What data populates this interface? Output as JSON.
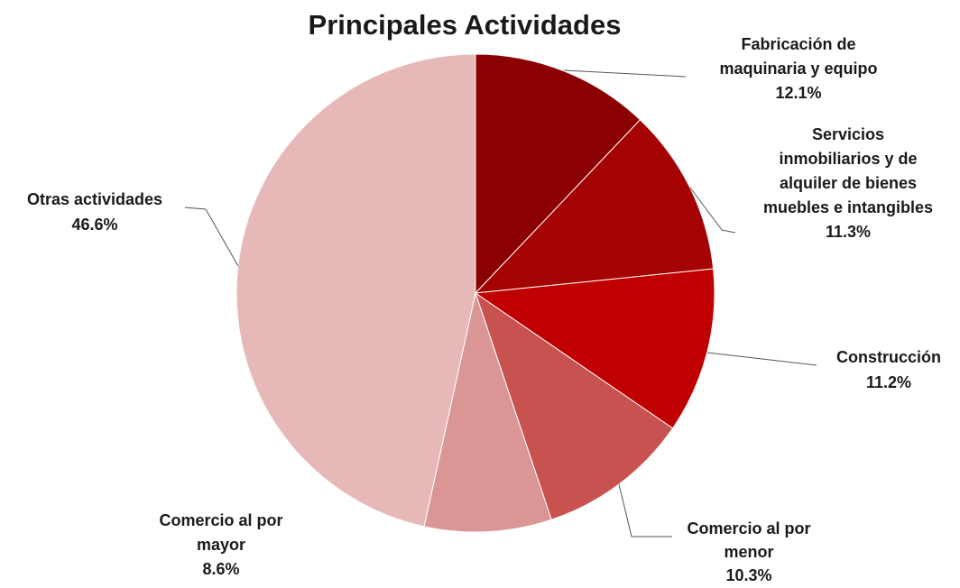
{
  "chart_data": {
    "type": "pie",
    "title": "Principales Actividades",
    "categories": [
      [
        "Fabricación de",
        "maquinaria y equipo"
      ],
      [
        "Servicios",
        "inmobiliarios y de",
        "alquiler de bienes",
        "muebles e intangibles"
      ],
      [
        "Construcción"
      ],
      [
        "Comercio al por",
        "menor"
      ],
      [
        "Comercio al por",
        "mayor"
      ],
      [
        "Otras actividades"
      ]
    ],
    "values": [
      12.1,
      11.3,
      11.2,
      10.3,
      8.6,
      46.6
    ],
    "value_labels": [
      "12.1%",
      "11.3%",
      "11.2%",
      "10.3%",
      "8.6%",
      "46.6%"
    ],
    "colors": [
      "#8b0000",
      "#a50303",
      "#c00000",
      "#c85250",
      "#d99695",
      "#e6b9b8"
    ]
  }
}
